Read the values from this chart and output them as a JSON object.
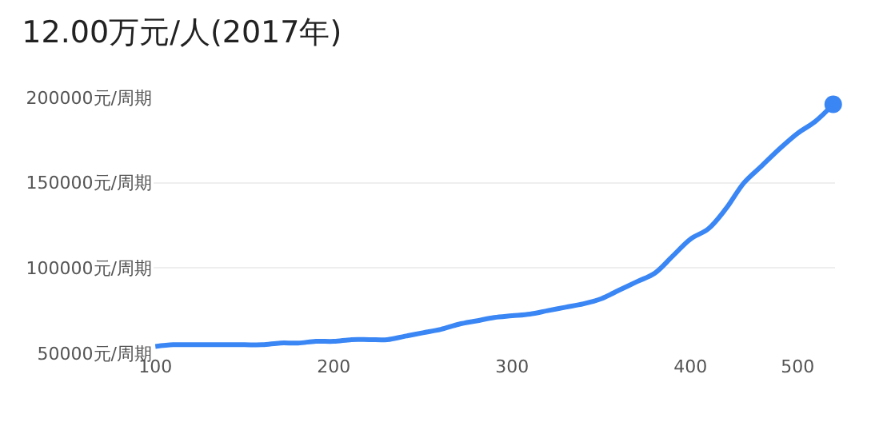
{
  "chart_data": {
    "type": "line",
    "title": "12.00万元/人(2017年)",
    "categories": [
      "100",
      null,
      null,
      null,
      null,
      null,
      null,
      null,
      null,
      null,
      "200",
      null,
      null,
      null,
      null,
      null,
      null,
      null,
      null,
      null,
      "300",
      null,
      null,
      null,
      null,
      null,
      null,
      null,
      null,
      null,
      "400",
      null,
      null,
      null,
      null,
      null,
      "500",
      null,
      null
    ],
    "series": [
      {
        "color": "#3a86f5",
        "marker": "none",
        "values": [
          54000,
          55000,
          55000,
          55000,
          55000,
          55000,
          55000,
          56000,
          56000,
          57000,
          57000,
          58000,
          58000,
          58000,
          60000,
          62000,
          64000,
          67000,
          69000,
          71000,
          72000,
          73000,
          75000,
          77000,
          79000,
          82000,
          87000,
          92000,
          97000,
          107000,
          117000,
          123000,
          135000,
          150000,
          160000,
          170000,
          179000,
          186000,
          196000
        ]
      },
      {
        "type": "scatter",
        "color": "#3a86f5",
        "marker": "circle",
        "values": [
          null,
          null,
          null,
          null,
          null,
          null,
          null,
          null,
          null,
          null,
          null,
          null,
          null,
          null,
          null,
          null,
          null,
          null,
          null,
          null,
          null,
          null,
          null,
          null,
          null,
          null,
          null,
          null,
          null,
          null,
          null,
          null,
          null,
          null,
          null,
          null,
          null,
          null,
          196000
        ]
      }
    ],
    "ylim": [
      50000,
      200000
    ],
    "yticks": [
      {
        "value": 50000,
        "label": "50000元/周期"
      },
      {
        "value": 100000,
        "label": "100000元/周期"
      },
      {
        "value": 150000,
        "label": "150000元/周期"
      },
      {
        "value": 200000,
        "label": "200000元/周期"
      }
    ],
    "grid": "y",
    "line_style": "solid"
  }
}
